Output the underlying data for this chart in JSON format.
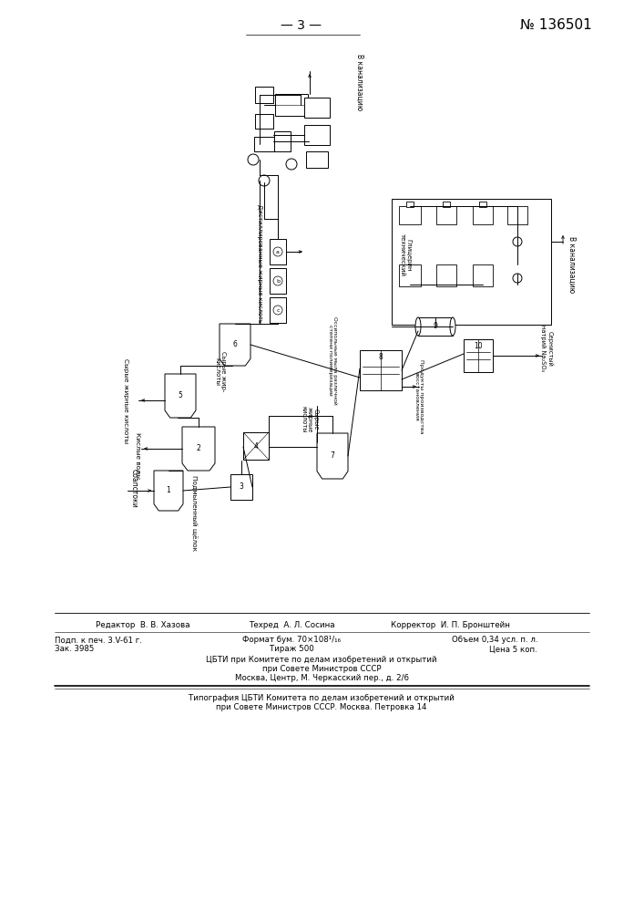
{
  "bg": "#f5f5f0",
  "fg": "#111111",
  "page_top_center": "— 3 —",
  "page_top_right": "№ 136501",
  "footer": {
    "line1_left": "Редактор  В. В. Хазова",
    "line1_center": "Техред  А. Л. Сосина",
    "line1_right": "Корректор  И. П. Бронштейн",
    "line2_left": "Подп. к печ. 3.V-61 г.",
    "line2_center": "Формат бум. 70×108¹/₁₆",
    "line2_right": "Объем 0,34 усл. п. л.",
    "line3_left": "Зак. 3985",
    "line3_center": "Тираж 500",
    "line3_right": "Цена 5 коп.",
    "line4": "ЦБТИ при Комитете по делам изобретений и открытий",
    "line5": "при Совете Министров СССР",
    "line6": "Москва, Центр, М. Черкасский пер., д. 2/6",
    "line7": "Типография ЦБТИ Комитета по делам изобретений и открытий",
    "line8": "при Совете Министров СССР. Москва. Петровка 14"
  }
}
